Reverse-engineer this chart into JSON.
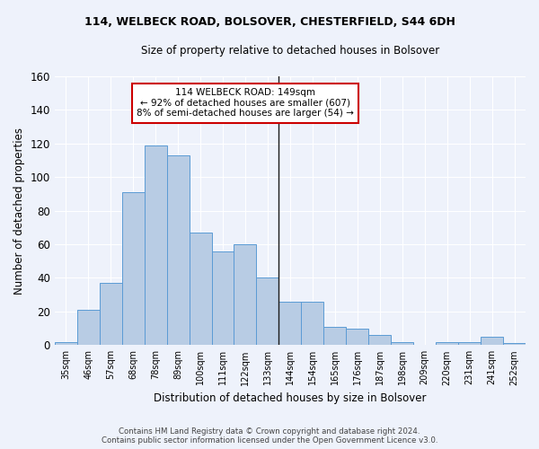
{
  "title1": "114, WELBECK ROAD, BOLSOVER, CHESTERFIELD, S44 6DH",
  "title2": "Size of property relative to detached houses in Bolsover",
  "xlabel": "Distribution of detached houses by size in Bolsover",
  "ylabel": "Number of detached properties",
  "categories": [
    "35sqm",
    "46sqm",
    "57sqm",
    "68sqm",
    "78sqm",
    "89sqm",
    "100sqm",
    "111sqm",
    "122sqm",
    "133sqm",
    "144sqm",
    "154sqm",
    "165sqm",
    "176sqm",
    "187sqm",
    "198sqm",
    "209sqm",
    "220sqm",
    "231sqm",
    "241sqm",
    "252sqm"
  ],
  "values": [
    2,
    21,
    37,
    91,
    119,
    113,
    67,
    56,
    60,
    40,
    26,
    26,
    11,
    10,
    6,
    2,
    0,
    2,
    2,
    5,
    1
  ],
  "bar_color": "#b8cce4",
  "bar_edge_color": "#5b9bd5",
  "vline_x_index": 10,
  "vline_color": "#1a1a1a",
  "annotation_text_line1": "114 WELBECK ROAD: 149sqm",
  "annotation_text_line2": "← 92% of detached houses are smaller (607)",
  "annotation_text_line3": "8% of semi-detached houses are larger (54) →",
  "annotation_box_color": "#ffffff",
  "annotation_box_edge": "#cc0000",
  "ylim": [
    0,
    160
  ],
  "yticks": [
    0,
    20,
    40,
    60,
    80,
    100,
    120,
    140,
    160
  ],
  "footer_line1": "Contains HM Land Registry data © Crown copyright and database right 2024.",
  "footer_line2": "Contains public sector information licensed under the Open Government Licence v3.0.",
  "bg_color": "#eef2fb",
  "grid_color": "#ffffff"
}
